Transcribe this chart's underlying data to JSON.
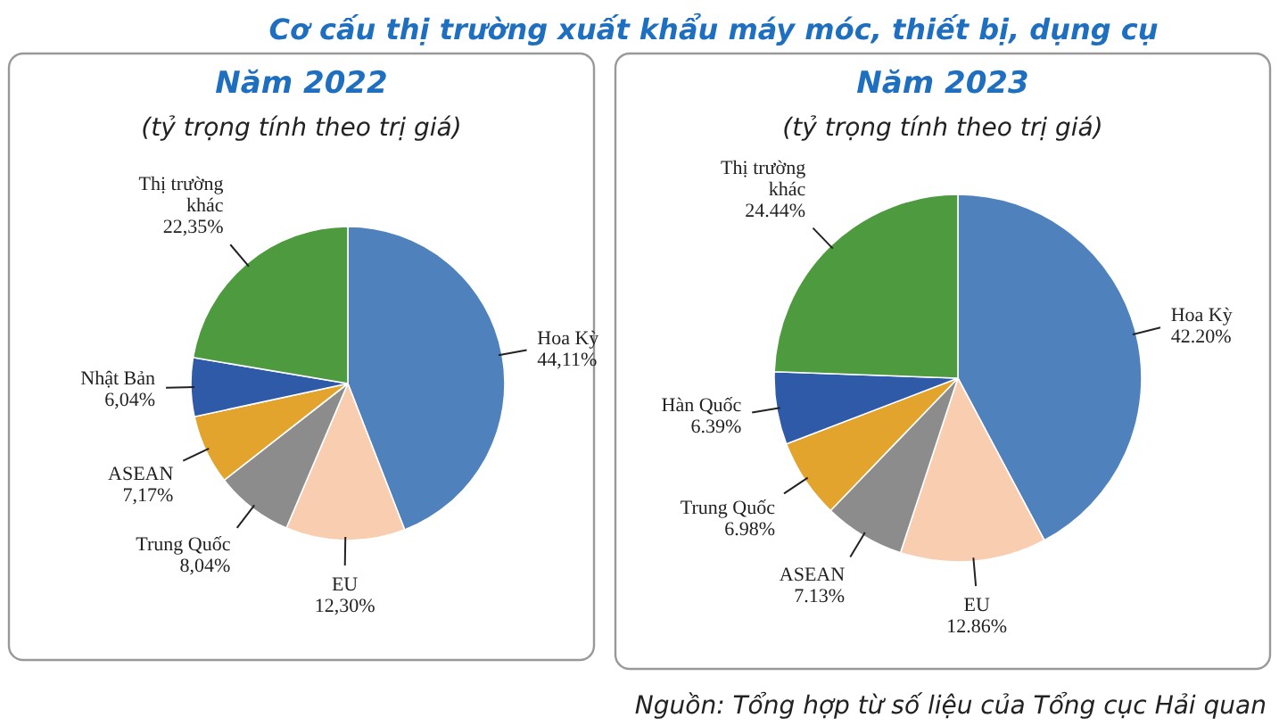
{
  "chart_data": [
    {
      "type": "pie",
      "title": "Năm 2022",
      "subtitle": "(tỷ trọng tính theo trị giá)",
      "annotations": [
        "Cơ cấu thị trường xuất khẩu máy móc, thiết bị, dụng cụ"
      ],
      "categories": [
        "Hoa Kỳ",
        "EU",
        "Trung Quốc",
        "ASEAN",
        "Nhật Bản",
        "Thị trường khác"
      ],
      "values": [
        44.11,
        12.3,
        8.04,
        7.17,
        6.04,
        22.35
      ],
      "value_labels": [
        "44,11%",
        "12,30%",
        "8,04%",
        "7,17%",
        "6,04%",
        "22,35%"
      ],
      "colors": [
        "#4f81bd",
        "#f9cdb0",
        "#8c8c8c",
        "#e2a42c",
        "#2f5aa8",
        "#4e9a3e"
      ]
    },
    {
      "type": "pie",
      "title": "Năm 2023",
      "subtitle": "(tỷ trọng tính theo trị giá)",
      "annotations": [
        "Nguồn: Tổng hợp từ số liệu của Tổng cục Hải quan"
      ],
      "categories": [
        "Hoa Kỳ",
        "EU",
        "ASEAN",
        "Trung Quốc",
        "Hàn Quốc",
        "Thị trường khác"
      ],
      "values": [
        42.2,
        12.86,
        7.13,
        6.98,
        6.39,
        24.44
      ],
      "value_labels": [
        "42.20%",
        "12.86%",
        "7.13%",
        "6.98%",
        "6.39%",
        "24.44%"
      ],
      "colors": [
        "#4f81bd",
        "#f9cdb0",
        "#8c8c8c",
        "#e2a42c",
        "#2f5aa8",
        "#4e9a3e"
      ]
    }
  ]
}
